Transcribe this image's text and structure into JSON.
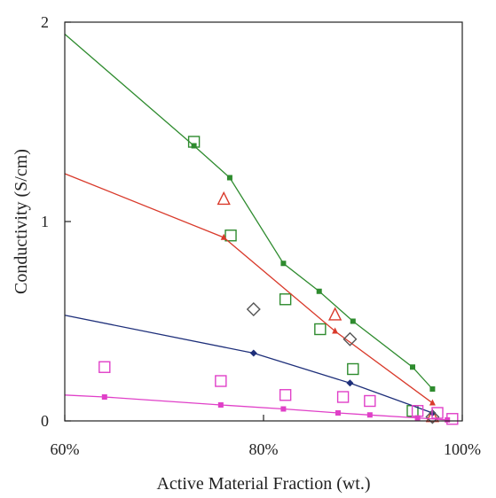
{
  "chart_data": {
    "type": "scatter",
    "xlabel": "Active Material Fraction (wt.)",
    "ylabel": "Conductivity (S/cm)",
    "xlim": [
      0.6,
      1.0
    ],
    "ylim": [
      0,
      2
    ],
    "x_ticks": [
      {
        "value": 0.6,
        "label": "60%"
      },
      {
        "value": 0.8,
        "label": "80%"
      },
      {
        "value": 1.0,
        "label": "100%"
      }
    ],
    "y_ticks": [
      {
        "value": 0,
        "label": "0"
      },
      {
        "value": 1,
        "label": "1"
      },
      {
        "value": 2,
        "label": "2"
      }
    ],
    "grid": false,
    "legend": "none",
    "series": [
      {
        "color": "#2e8b2e",
        "marker": "square-filled",
        "line": [
          [
            0.6,
            1.94
          ],
          [
            0.73,
            1.38
          ],
          [
            0.766,
            1.22
          ],
          [
            0.82,
            0.79
          ],
          [
            0.856,
            0.65
          ],
          [
            0.89,
            0.5
          ],
          [
            0.95,
            0.27
          ],
          [
            0.97,
            0.16
          ]
        ],
        "points": [
          [
            0.73,
            1.38
          ],
          [
            0.766,
            1.22
          ],
          [
            0.82,
            0.79
          ],
          [
            0.856,
            0.65
          ],
          [
            0.89,
            0.5
          ],
          [
            0.95,
            0.27
          ],
          [
            0.97,
            0.16
          ]
        ]
      },
      {
        "color": "#2e8b2e",
        "marker": "square-open",
        "points": [
          [
            0.73,
            1.4
          ],
          [
            0.767,
            0.93
          ],
          [
            0.822,
            0.61
          ],
          [
            0.857,
            0.46
          ],
          [
            0.89,
            0.26
          ],
          [
            0.95,
            0.05
          ]
        ]
      },
      {
        "color": "#d93a2b",
        "marker": "triangle-filled",
        "line": [
          [
            0.6,
            1.24
          ],
          [
            0.76,
            0.92
          ],
          [
            0.872,
            0.45
          ],
          [
            0.97,
            0.09
          ]
        ],
        "points": [
          [
            0.76,
            0.92
          ],
          [
            0.872,
            0.45
          ],
          [
            0.97,
            0.09
          ]
        ]
      },
      {
        "color": "#d93a2b",
        "marker": "triangle-open",
        "points": [
          [
            0.76,
            1.11
          ],
          [
            0.872,
            0.53
          ],
          [
            0.97,
            0.02
          ]
        ]
      },
      {
        "color": "#1e2f7a",
        "marker": "diamond-filled",
        "line": [
          [
            0.6,
            0.53
          ],
          [
            0.79,
            0.34
          ],
          [
            0.887,
            0.19
          ],
          [
            0.97,
            0.04
          ]
        ],
        "points": [
          [
            0.79,
            0.34
          ],
          [
            0.887,
            0.19
          ],
          [
            0.97,
            0.04
          ]
        ]
      },
      {
        "color": "#555555",
        "marker": "diamond-open",
        "points": [
          [
            0.79,
            0.56
          ],
          [
            0.887,
            0.41
          ],
          [
            0.97,
            0.02
          ]
        ]
      },
      {
        "color": "#e040c8",
        "marker": "square-filled",
        "line": [
          [
            0.6,
            0.13
          ],
          [
            0.64,
            0.12
          ],
          [
            0.757,
            0.08
          ],
          [
            0.82,
            0.06
          ],
          [
            0.875,
            0.04
          ],
          [
            0.907,
            0.03
          ],
          [
            0.955,
            0.015
          ],
          [
            0.985,
            0.005
          ]
        ],
        "points": [
          [
            0.64,
            0.12
          ],
          [
            0.757,
            0.08
          ],
          [
            0.82,
            0.06
          ],
          [
            0.875,
            0.04
          ],
          [
            0.907,
            0.03
          ],
          [
            0.955,
            0.015
          ],
          [
            0.985,
            0.005
          ]
        ]
      },
      {
        "color": "#e040c8",
        "marker": "square-open",
        "points": [
          [
            0.64,
            0.27
          ],
          [
            0.757,
            0.2
          ],
          [
            0.822,
            0.13
          ],
          [
            0.88,
            0.12
          ],
          [
            0.907,
            0.1
          ],
          [
            0.955,
            0.05
          ],
          [
            0.975,
            0.04
          ],
          [
            0.99,
            0.01
          ]
        ]
      }
    ]
  }
}
